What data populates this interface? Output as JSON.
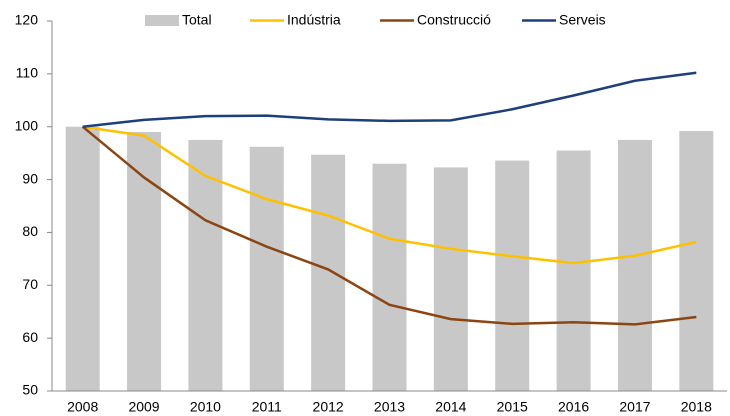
{
  "chart_data": {
    "type": "bar-line",
    "categories": [
      "2008",
      "2009",
      "2010",
      "2011",
      "2012",
      "2013",
      "2014",
      "2015",
      "2016",
      "2017",
      "2018"
    ],
    "series": [
      {
        "name": "Total",
        "type": "bar",
        "color": "#c8c8c8",
        "values": [
          100,
          99,
          97.5,
          96.2,
          94.7,
          93,
          92.3,
          93.6,
          95.5,
          97.5,
          99.2
        ]
      },
      {
        "name": "Indústria",
        "type": "line",
        "color": "#ffc000",
        "values": [
          100,
          98.3,
          90.7,
          86.3,
          83.2,
          78.8,
          76.9,
          75.5,
          74.2,
          75.6,
          78.2
        ]
      },
      {
        "name": "Construcció",
        "type": "line",
        "color": "#8b4513",
        "values": [
          100,
          90.4,
          82.3,
          77.3,
          73,
          66.3,
          63.6,
          62.7,
          63,
          62.6,
          64
        ]
      },
      {
        "name": "Serveis",
        "type": "line",
        "color": "#1f3f7a",
        "values": [
          100,
          101.3,
          102,
          102.1,
          101.4,
          101.1,
          101.2,
          103.3,
          105.9,
          108.7,
          110.2
        ]
      }
    ],
    "ylim": [
      50,
      120
    ],
    "yticks": [
      50,
      60,
      70,
      80,
      90,
      100,
      110,
      120
    ],
    "legend": "top"
  }
}
